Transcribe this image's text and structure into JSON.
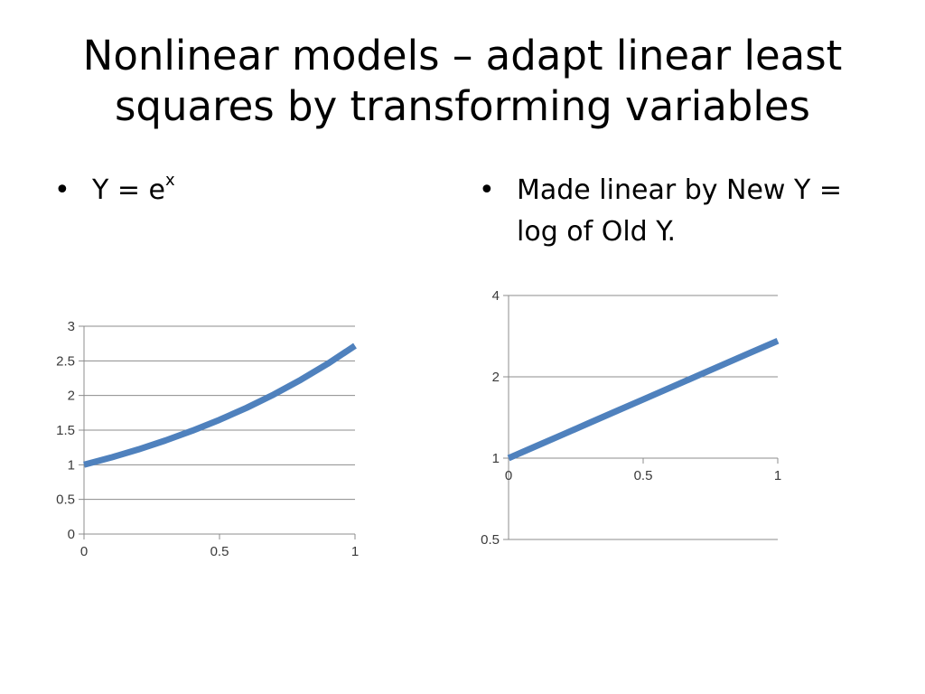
{
  "slide": {
    "title_line1": "Nonlinear models – adapt linear least",
    "title_line2": "squares by transforming variables"
  },
  "bullets": {
    "left": {
      "marker": "•",
      "text_base": "Y = e",
      "text_sup": "x"
    },
    "right": {
      "marker": "•",
      "line1": "Made linear by New Y =",
      "line2": "log of Old Y."
    }
  },
  "chart_data": [
    {
      "type": "line",
      "title": "",
      "xlabel": "",
      "ylabel": "",
      "xlim": [
        0,
        1
      ],
      "ylim": [
        0,
        3
      ],
      "x_ticks": [
        "0",
        "0.5",
        "1"
      ],
      "y_ticks": [
        "0",
        "0.5",
        "1",
        "1.5",
        "2",
        "2.5",
        "3"
      ],
      "grid": "horizontal",
      "legend": "none",
      "series": [
        {
          "color": "#4f81bd",
          "x": [
            0,
            0.1,
            0.2,
            0.3,
            0.4,
            0.5,
            0.6,
            0.7,
            0.8,
            0.9,
            1.0
          ],
          "y": [
            1.0,
            1.105,
            1.221,
            1.35,
            1.492,
            1.649,
            1.822,
            2.014,
            2.226,
            2.46,
            2.718
          ]
        }
      ]
    },
    {
      "type": "line",
      "title": "",
      "xlabel": "",
      "ylabel": "",
      "xlim": [
        0,
        1
      ],
      "ylim": [
        0.5,
        4
      ],
      "y_scale": "log",
      "x_ticks": [
        "0",
        "0.5",
        "1"
      ],
      "y_ticks": [
        "0.5",
        "1",
        "2",
        "4"
      ],
      "x_axis_crosses_at": 1,
      "grid": "horizontal",
      "legend": "none",
      "series": [
        {
          "color": "#4f81bd",
          "x": [
            0,
            0.1,
            0.2,
            0.3,
            0.4,
            0.5,
            0.6,
            0.7,
            0.8,
            0.9,
            1.0
          ],
          "y": [
            1.0,
            1.105,
            1.221,
            1.35,
            1.492,
            1.649,
            1.822,
            2.014,
            2.226,
            2.46,
            2.718
          ]
        }
      ]
    }
  ]
}
